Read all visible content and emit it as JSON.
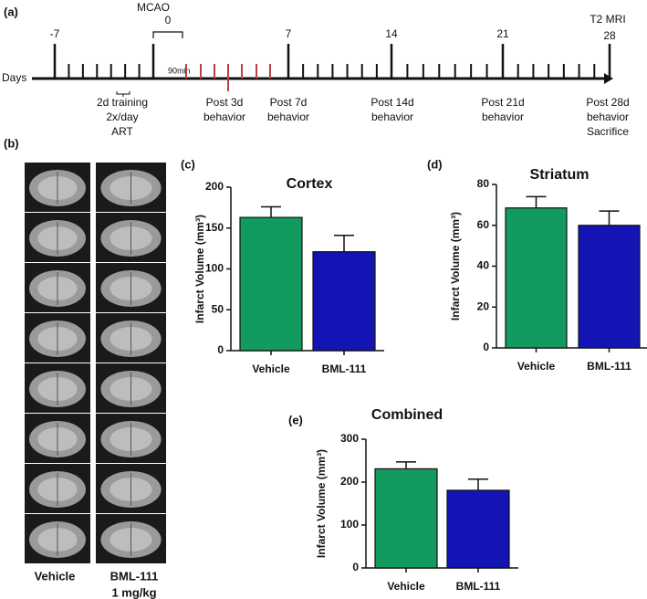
{
  "panel_labels": [
    "(a)",
    "(b)",
    "(c)",
    "(d)",
    "(e)"
  ],
  "timeline": {
    "axis_label": "Days",
    "mcao": "MCAO",
    "mri": "T2 MRI",
    "interval": "90min",
    "day_labels": [
      "-7",
      "0",
      "7",
      "14",
      "21",
      "28"
    ],
    "events": [
      [
        "2d training",
        "2x/day",
        "ART"
      ],
      [
        "Post 3d",
        "behavior"
      ],
      [
        "Post 7d",
        "behavior"
      ],
      [
        "Post 14d",
        "behavior"
      ],
      [
        "Post 21d",
        "behavior"
      ],
      [
        "Post 28d",
        "behavior",
        "Sacrifice"
      ]
    ]
  },
  "images": {
    "columns": [
      "Vehicle",
      "BML-111"
    ],
    "dose": "1 mg/kg"
  },
  "chart_data": [
    {
      "type": "bar",
      "title": "Cortex",
      "y_label": "Infarct Volume (mm³)",
      "categories": [
        "Vehicle",
        "BML-111"
      ],
      "values": [
        163,
        121
      ],
      "errors": [
        13,
        20
      ],
      "colors": [
        "#139a5f",
        "#1414b4"
      ],
      "ylim": [
        0,
        200
      ],
      "yticks": [
        0,
        50,
        100,
        150,
        200
      ]
    },
    {
      "type": "bar",
      "title": "Striatum",
      "y_label": "Infarct Volume (mm³)",
      "categories": [
        "Vehicle",
        "BML-111"
      ],
      "values": [
        68.5,
        60
      ],
      "errors": [
        5.5,
        7
      ],
      "colors": [
        "#139a5f",
        "#1414b4"
      ],
      "ylim": [
        0,
        80
      ],
      "yticks": [
        0,
        20,
        40,
        60,
        80
      ]
    },
    {
      "type": "bar",
      "title": "Combined",
      "y_label": "Infarct Volume (mm³)",
      "categories": [
        "Vehicle",
        "BML-111"
      ],
      "values": [
        231,
        181
      ],
      "errors": [
        16,
        26
      ],
      "colors": [
        "#139a5f",
        "#1414b4"
      ],
      "ylim": [
        0,
        300
      ],
      "yticks": [
        0,
        100,
        200,
        300
      ]
    }
  ]
}
